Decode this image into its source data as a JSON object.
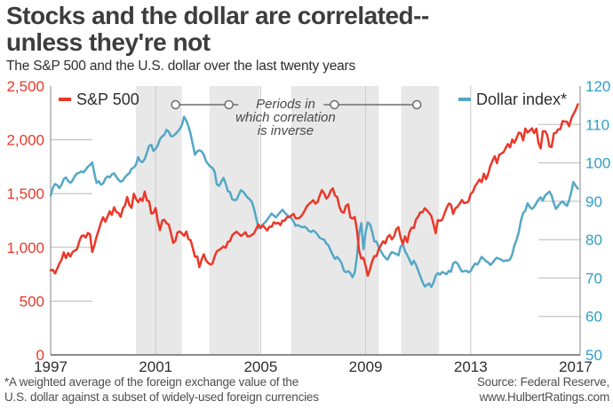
{
  "header": {
    "title_line1": "Stocks and the dollar are correlated--",
    "title_line2": "unless they're not",
    "subtitle": "The S&P 500 and the U.S. dollar over the last twenty years"
  },
  "footer": {
    "footnote_line1": "*A weighted average of the foreign exchange value of the",
    "footnote_line2": "U.S. dollar against a subset of widely-used foreign currencies",
    "source_line1": "Source: Federal Reserve,",
    "source_line2": "www.HulbertRatings.com"
  },
  "colors": {
    "sp500": "#ea3829",
    "dollar": "#55a7c6",
    "dollar_label": "#2f9fc6",
    "band": "#e8e8e8",
    "gridline": "#c9c9c9",
    "tick_line": "#b8b8b8",
    "axis": "#9a9a9a",
    "bottom_axis": "#8c8c8c",
    "annotation": "#6e6e6e",
    "text_dark": "#2e2e2e"
  },
  "chart_data": {
    "type": "line",
    "title": "Stocks and the dollar are correlated-- unless they're not",
    "subtitle": "The S&P 500 and the U.S. dollar over the last twenty years",
    "grid": "partial-edge-ticks",
    "legend_position": "inside-top",
    "x_axis": {
      "range": [
        1997,
        2017.17
      ],
      "tick_years": [
        1997,
        2001,
        2005,
        2009,
        2013,
        2017
      ],
      "gridline_years": [
        2001,
        2005,
        2009,
        2013
      ]
    },
    "left_axis": {
      "series": "S&P 500",
      "range": [
        0,
        2500
      ],
      "tick_values": [
        2500,
        2000,
        1500,
        1000,
        500,
        0
      ],
      "tick_labels": [
        "2,500",
        "2,000",
        "1,500",
        "1,000",
        "500",
        "0"
      ],
      "tick_segment_values": [
        2000,
        1500,
        1000,
        500
      ]
    },
    "right_axis": {
      "series": "Dollar index*",
      "range": [
        50,
        120
      ],
      "tick_values": [
        120,
        110,
        100,
        90,
        80,
        70,
        60,
        50
      ],
      "tick_labels": [
        "120",
        "110",
        "100",
        "90",
        "80",
        "70",
        "60",
        "50"
      ],
      "tick_segment_values": [
        110,
        100,
        90,
        80,
        70,
        60
      ]
    },
    "shaded_periods": [
      [
        2000.25,
        2002.0
      ],
      [
        2003.05,
        2004.95
      ],
      [
        2006.16,
        2009.5
      ],
      [
        2010.35,
        2011.8
      ]
    ],
    "annotation": {
      "text_lines": [
        "Periods in",
        "which correlation",
        "is inverse"
      ],
      "text_center_year": 2005.95,
      "line_segments_years": [
        [
          2001.76,
          2004.15
        ],
        [
          2007.4,
          2010.95
        ]
      ],
      "circle_years": [
        2001.76,
        2003.79,
        2007.81,
        2010.95
      ]
    },
    "legend": [
      {
        "label": "S&P 500",
        "color": "#ea3829",
        "position": "top-left"
      },
      {
        "label": "Dollar index*",
        "color": "#55a7c6",
        "position": "top-right"
      }
    ],
    "series": [
      {
        "name": "S&P 500",
        "axis": "left",
        "color": "#ea3829",
        "x_start": 1997,
        "x_step_years": 0.0833333,
        "values": [
          786,
          791,
          757,
          801,
          848,
          885,
          954,
          899,
          947,
          915,
          955,
          970,
          980,
          1049,
          1102,
          1112,
          1091,
          1134,
          1121,
          957,
          1017,
          1099,
          1164,
          1229,
          1280,
          1238,
          1286,
          1335,
          1302,
          1373,
          1329,
          1320,
          1283,
          1363,
          1389,
          1469,
          1394,
          1366,
          1499,
          1452,
          1421,
          1455,
          1431,
          1518,
          1437,
          1429,
          1315,
          1320,
          1366,
          1240,
          1160,
          1249,
          1256,
          1224,
          1211,
          1134,
          1041,
          1060,
          1139,
          1148,
          1130,
          1107,
          1147,
          1077,
          1067,
          990,
          912,
          916,
          815,
          886,
          936,
          880,
          856,
          841,
          849,
          917,
          964,
          975,
          990,
          1008,
          996,
          1051,
          1058,
          1112,
          1131,
          1145,
          1126,
          1107,
          1121,
          1141,
          1102,
          1104,
          1115,
          1130,
          1174,
          1212,
          1181,
          1204,
          1181,
          1157,
          1192,
          1191,
          1234,
          1220,
          1229,
          1207,
          1249,
          1248,
          1280,
          1281,
          1295,
          1311,
          1270,
          1270,
          1277,
          1304,
          1336,
          1378,
          1401,
          1418,
          1438,
          1407,
          1421,
          1482,
          1531,
          1503,
          1455,
          1474,
          1527,
          1549,
          1481,
          1468,
          1379,
          1331,
          1323,
          1386,
          1400,
          1280,
          1267,
          1283,
          1166,
          969,
          896,
          903,
          826,
          735,
          798,
          873,
          919,
          919,
          987,
          1021,
          1057,
          1036,
          1096,
          1115,
          1074,
          1104,
          1169,
          1187,
          1089,
          1031,
          1102,
          1049,
          1141,
          1183,
          1181,
          1258,
          1286,
          1327,
          1326,
          1364,
          1345,
          1321,
          1292,
          1219,
          1131,
          1253,
          1247,
          1258,
          1312,
          1366,
          1408,
          1398,
          1310,
          1362,
          1379,
          1407,
          1441,
          1412,
          1416,
          1426,
          1498,
          1515,
          1569,
          1598,
          1631,
          1606,
          1686,
          1633,
          1682,
          1757,
          1806,
          1848,
          1783,
          1859,
          1872,
          1884,
          1924,
          1960,
          1931,
          2003,
          1972,
          2018,
          2068,
          2059,
          1995,
          2105,
          2068,
          2086,
          2107,
          2063,
          2104,
          1972,
          1920,
          2079,
          2080,
          2044,
          1940,
          1932,
          2060,
          2065,
          2097,
          2099,
          2174,
          2171,
          2168,
          2126,
          2199,
          2239,
          2279,
          2330
        ]
      },
      {
        "name": "Dollar index*",
        "axis": "right",
        "color": "#55a7c6",
        "x_start": 1997,
        "x_step_years": 0.0833333,
        "values": [
          91.5,
          93.5,
          94.5,
          94.2,
          93.4,
          94.3,
          95.8,
          96.2,
          95.3,
          94.8,
          95.4,
          96.5,
          97.2,
          97.4,
          97.8,
          97.5,
          98.2,
          99.0,
          99.4,
          100.1,
          97.3,
          94.8,
          95.2,
          94.3,
          94.6,
          95.9,
          96.5,
          96.2,
          97.0,
          97.3,
          96.4,
          95.6,
          95.1,
          95.4,
          96.3,
          96.9,
          97.3,
          98.5,
          98.8,
          99.5,
          101.5,
          100.4,
          100.2,
          101.0,
          102.6,
          104.4,
          104.7,
          103.1,
          103.7,
          104.6,
          106.2,
          106.9,
          107.3,
          108.6,
          108.1,
          106.9,
          107.0,
          107.5,
          108.1,
          108.8,
          109.8,
          112.0,
          111.0,
          109.5,
          107.5,
          104.7,
          102.1,
          103.0,
          103.3,
          103.0,
          102.1,
          100.5,
          99.7,
          99.0,
          98.7,
          97.6,
          94.4,
          94.0,
          95.1,
          96.1,
          94.6,
          92.6,
          92.4,
          90.5,
          90.3,
          90.4,
          91.7,
          92.9,
          92.5,
          91.7,
          91.0,
          90.5,
          89.8,
          88.0,
          85.5,
          83.0,
          83.2,
          84.0,
          84.5,
          85.2,
          86.0,
          86.8,
          86.3,
          85.8,
          86.5,
          87.2,
          87.8,
          87.0,
          86.5,
          86.0,
          85.6,
          84.8,
          83.6,
          83.8,
          83.5,
          83.2,
          83.4,
          83.0,
          82.3,
          82.0,
          82.4,
          82.0,
          81.3,
          80.5,
          80.2,
          80.0,
          79.0,
          78.5,
          77.2,
          76.0,
          75.0,
          75.5,
          74.8,
          73.9,
          72.0,
          71.5,
          71.8,
          71.3,
          70.2,
          71.5,
          75.5,
          81.5,
          84.3,
          77.5,
          82.0,
          84.5,
          84.0,
          82.0,
          79.5,
          79.5,
          78.0,
          77.0,
          76.0,
          75.3,
          74.8,
          76.0,
          76.8,
          76.5,
          76.3,
          75.9,
          78.2,
          78.8,
          77.0,
          76.0,
          74.8,
          73.5,
          74.5,
          73.5,
          72.0,
          70.5,
          69.0,
          67.8,
          68.2,
          68.6,
          67.7,
          68.8,
          70.6,
          71.3,
          70.9,
          71.6,
          71.3,
          71.0,
          71.9,
          71.6,
          73.8,
          74.2,
          73.8,
          72.7,
          71.7,
          71.8,
          71.9,
          71.5,
          71.8,
          72.9,
          73.8,
          73.5,
          74.4,
          75.5,
          75.0,
          74.4,
          74.1,
          73.4,
          74.0,
          74.8,
          75.3,
          75.0,
          74.8,
          74.4,
          74.6,
          74.5,
          74.9,
          76.2,
          78.5,
          80.0,
          82.0,
          85.0,
          87.0,
          87.5,
          89.5,
          88.5,
          88.0,
          88.5,
          89.5,
          90.5,
          91.0,
          90.2,
          91.5,
          92.0,
          92.5,
          91.5,
          89.5,
          88.0,
          88.8,
          89.5,
          90.0,
          89.3,
          88.8,
          90.2,
          92.5,
          95.0,
          94.0,
          93.3
        ]
      }
    ]
  }
}
